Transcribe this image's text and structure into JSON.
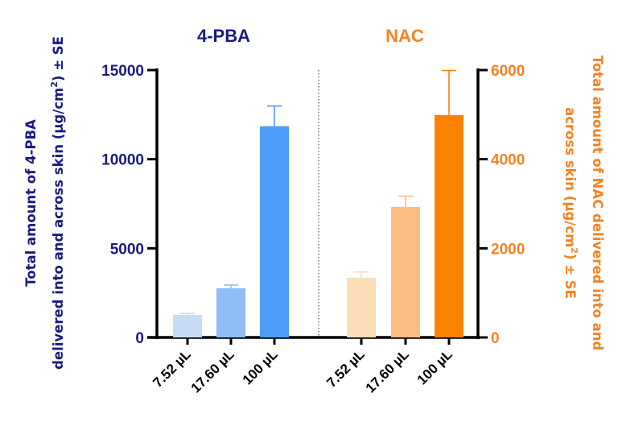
{
  "chart_data": {
    "type": "bar",
    "panels": [
      {
        "title": "4-PBA",
        "categories": [
          "7.52 µL",
          "17.60 µL",
          "100 µL"
        ],
        "values": [
          1270,
          2760,
          11850
        ],
        "error_upper": [
          1350,
          2940,
          12980
        ],
        "colors": [
          "#c6dcf6",
          "#90bdf6",
          "#4f9cf9"
        ],
        "axis": "left",
        "ylim": [
          0,
          15000
        ],
        "yticks": [
          0,
          5000,
          10000,
          15000
        ],
        "ylabel_line1": "Total amount of 4-PBA",
        "ylabel_line2": "delivered into and across skin (µg/cm",
        "ylabel_sup": "2",
        "ylabel_tail": ") ± SE",
        "color": "#1b1b80"
      },
      {
        "title": "NAC",
        "categories": [
          "7.52 µL",
          "17.60 µL",
          "100 µL"
        ],
        "values": [
          1340,
          2930,
          4990
        ],
        "error_upper": [
          1470,
          3170,
          5990
        ],
        "colors": [
          "#fddcb8",
          "#fcbe80",
          "#fb8200"
        ],
        "axis": "right",
        "ylim": [
          0,
          6000
        ],
        "yticks": [
          0,
          2000,
          4000,
          6000
        ],
        "ylabel_line1": "Total amount of NAC delivered into and",
        "ylabel_line2": "across skin (µg/cm",
        "ylabel_sup": "2",
        "ylabel_tail": ") ± SE",
        "color": "#f58220"
      }
    ],
    "grid": false,
    "legend": "none",
    "separator": "dotted vertical line between groups"
  }
}
